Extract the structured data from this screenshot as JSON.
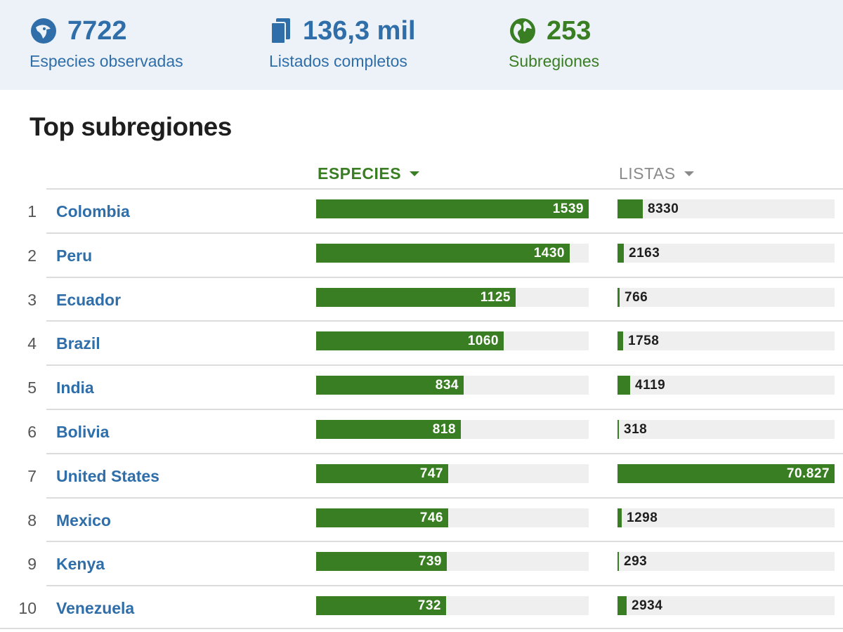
{
  "stats": [
    {
      "value": "7722",
      "label": "Especies observadas",
      "icon": "bird-head-icon",
      "color": "#2f6ea8"
    },
    {
      "value": "136,3 mil",
      "label": "Listados completos",
      "icon": "checklist-icon",
      "color": "#2f6ea8"
    },
    {
      "value": "253",
      "label": "Subregiones",
      "icon": "globe-icon",
      "color": "#3a7e23"
    }
  ],
  "section_title": "Top subregiones",
  "columns": {
    "species": "ESPECIES",
    "lists": "LISTAS"
  },
  "colors": {
    "accent_green": "#3a7e23",
    "link_blue": "#2f6ea8",
    "bar_track": "#efefef",
    "stats_background": "#ecf2f8"
  },
  "chart_data": {
    "type": "table",
    "max_species": 1539,
    "max_lists": 70827,
    "rows": [
      {
        "rank": "1",
        "name": "Colombia",
        "species": 1539,
        "species_label": "1539",
        "lists": 8330,
        "lists_label": "8330"
      },
      {
        "rank": "2",
        "name": "Peru",
        "species": 1430,
        "species_label": "1430",
        "lists": 2163,
        "lists_label": "2163"
      },
      {
        "rank": "3",
        "name": "Ecuador",
        "species": 1125,
        "species_label": "1125",
        "lists": 766,
        "lists_label": "766"
      },
      {
        "rank": "4",
        "name": "Brazil",
        "species": 1060,
        "species_label": "1060",
        "lists": 1758,
        "lists_label": "1758"
      },
      {
        "rank": "5",
        "name": "India",
        "species": 834,
        "species_label": "834",
        "lists": 4119,
        "lists_label": "4119"
      },
      {
        "rank": "6",
        "name": "Bolivia",
        "species": 818,
        "species_label": "818",
        "lists": 318,
        "lists_label": "318"
      },
      {
        "rank": "7",
        "name": "United States",
        "species": 747,
        "species_label": "747",
        "lists": 70827,
        "lists_label": "70.827"
      },
      {
        "rank": "8",
        "name": "Mexico",
        "species": 746,
        "species_label": "746",
        "lists": 1298,
        "lists_label": "1298"
      },
      {
        "rank": "9",
        "name": "Kenya",
        "species": 739,
        "species_label": "739",
        "lists": 293,
        "lists_label": "293"
      },
      {
        "rank": "10",
        "name": "Venezuela",
        "species": 732,
        "species_label": "732",
        "lists": 2934,
        "lists_label": "2934"
      }
    ]
  }
}
